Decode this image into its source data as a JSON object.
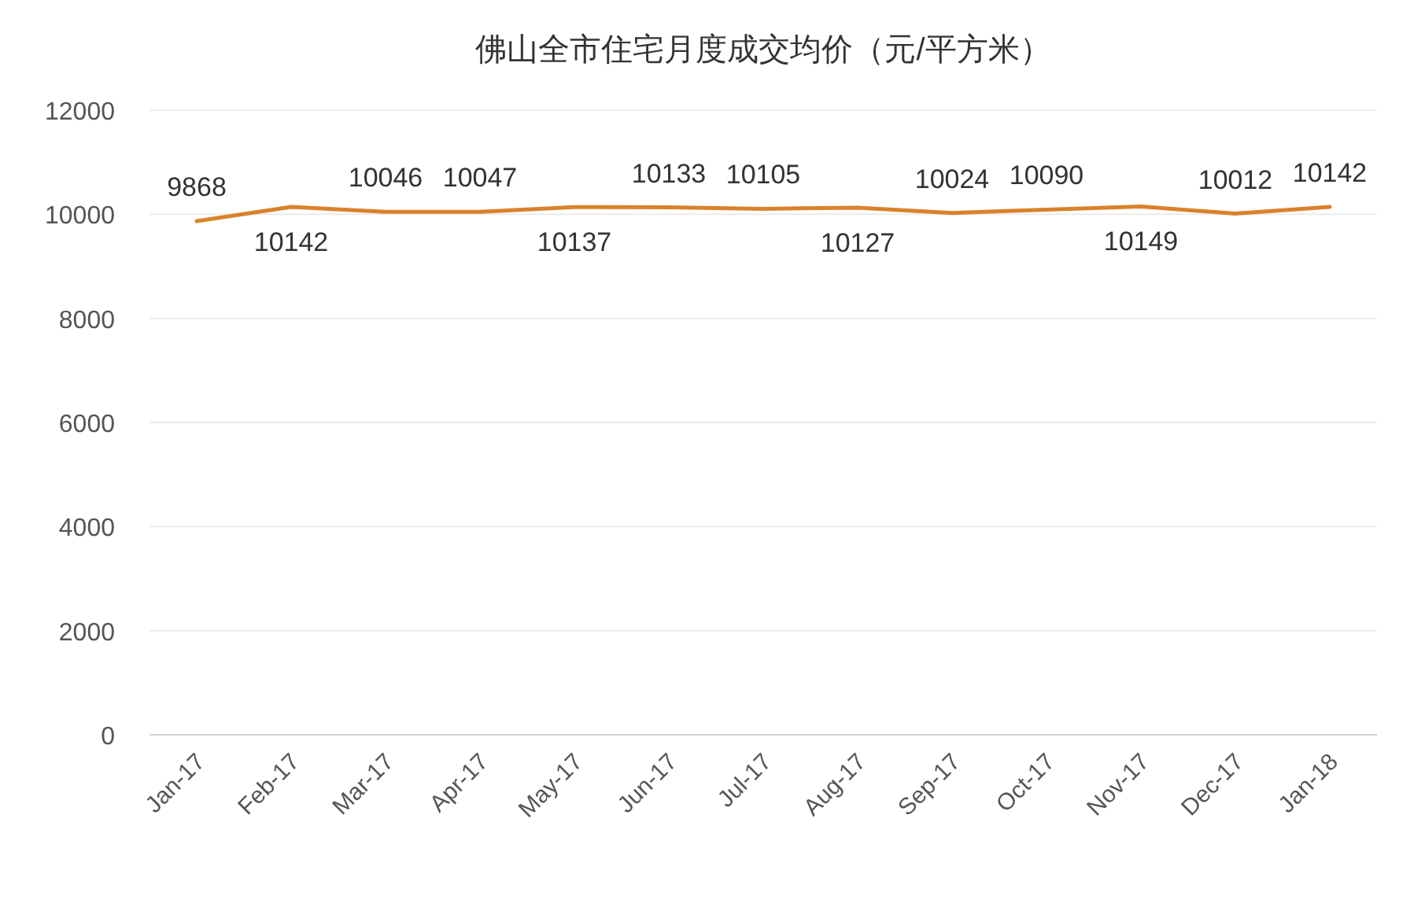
{
  "chart_data": {
    "type": "line",
    "title": "佛山全市住宅月度成交均价（元/平方米）",
    "categories": [
      "Jan-17",
      "Feb-17",
      "Mar-17",
      "Apr-17",
      "May-17",
      "Jun-17",
      "Jul-17",
      "Aug-17",
      "Sep-17",
      "Oct-17",
      "Nov-17",
      "Dec-17",
      "Jan-18"
    ],
    "series": [
      {
        "color": "#d9822b",
        "values": [
          9868,
          10142,
          10046,
          10047,
          10137,
          10133,
          10105,
          10127,
          10024,
          10090,
          10149,
          10012,
          10142
        ]
      }
    ],
    "ylim": [
      0,
      12000
    ],
    "yticks": [
      0,
      2000,
      4000,
      6000,
      8000,
      10000,
      12000
    ],
    "grid": "y",
    "data_labels": true,
    "marker": "none",
    "line_style": "solid"
  }
}
